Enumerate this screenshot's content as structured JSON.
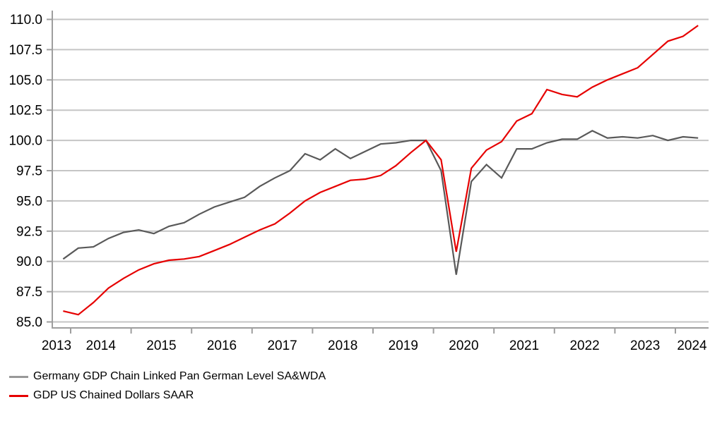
{
  "chart_data": {
    "type": "line",
    "title": "",
    "grid": "horizontal",
    "legend_position": "bottom-left",
    "y_axis": {
      "min": 85.0,
      "max": 110.0,
      "step": 2.5,
      "tick_labels": [
        "110.0",
        "107.5",
        "105.0",
        "102.5",
        "100.0",
        "97.5",
        "95.0",
        "92.5",
        "90.0",
        "87.5",
        "85.0"
      ]
    },
    "x_axis": {
      "tick_labels": [
        "2013",
        "2014",
        "2015",
        "2016",
        "2017",
        "2018",
        "2019",
        "2020",
        "2021",
        "2022",
        "2023",
        "2024"
      ]
    },
    "categories": [
      "2013 Q4",
      "2014 Q1",
      "2014 Q2",
      "2014 Q3",
      "2014 Q4",
      "2015 Q1",
      "2015 Q2",
      "2015 Q3",
      "2015 Q4",
      "2016 Q1",
      "2016 Q2",
      "2016 Q3",
      "2016 Q4",
      "2017 Q1",
      "2017 Q2",
      "2017 Q3",
      "2017 Q4",
      "2018 Q1",
      "2018 Q2",
      "2018 Q3",
      "2018 Q4",
      "2019 Q1",
      "2019 Q2",
      "2019 Q3",
      "2019 Q4",
      "2020 Q1",
      "2020 Q2",
      "2020 Q3",
      "2020 Q4",
      "2021 Q1",
      "2021 Q2",
      "2021 Q3",
      "2021 Q4",
      "2022 Q1",
      "2022 Q2",
      "2022 Q3",
      "2022 Q4",
      "2023 Q1",
      "2023 Q2",
      "2023 Q3",
      "2023 Q4",
      "2024 Q1",
      "2024 Q2"
    ],
    "series": [
      {
        "name": "Germany GDP Chain Linked Pan German Level SA&WDA",
        "color": "#595959",
        "legend_swatch_color": "#999999",
        "values": [
          90.2,
          91.1,
          91.2,
          91.9,
          92.4,
          92.6,
          92.3,
          92.9,
          93.2,
          93.9,
          94.5,
          94.9,
          95.3,
          96.2,
          96.9,
          97.5,
          98.9,
          98.4,
          99.3,
          98.5,
          99.1,
          99.7,
          99.8,
          100.0,
          100.0,
          97.5,
          88.9,
          96.6,
          98.0,
          96.9,
          99.3,
          99.3,
          99.8,
          100.1,
          100.1,
          100.8,
          100.2,
          100.3,
          100.2,
          100.4,
          100.0,
          100.3,
          100.2
        ]
      },
      {
        "name": "GDP US Chained Dollars SAAR",
        "color": "#e60000",
        "legend_swatch_color": "#e60000",
        "values": [
          85.9,
          85.6,
          86.6,
          87.8,
          88.6,
          89.3,
          89.8,
          90.1,
          90.2,
          90.4,
          90.9,
          91.4,
          92.0,
          92.6,
          93.1,
          94.0,
          95.0,
          95.7,
          96.2,
          96.7,
          96.8,
          97.1,
          97.9,
          99.0,
          100.0,
          98.4,
          90.8,
          97.7,
          99.2,
          99.9,
          101.6,
          102.2,
          104.2,
          103.8,
          103.6,
          104.4,
          105.0,
          105.5,
          106.0,
          107.1,
          108.2,
          108.6,
          109.5
        ]
      }
    ],
    "colors": {
      "gridline": "#c5c5c5",
      "axis": "#9e9e9e",
      "label_text": "#000000",
      "background": "#ffffff"
    }
  }
}
